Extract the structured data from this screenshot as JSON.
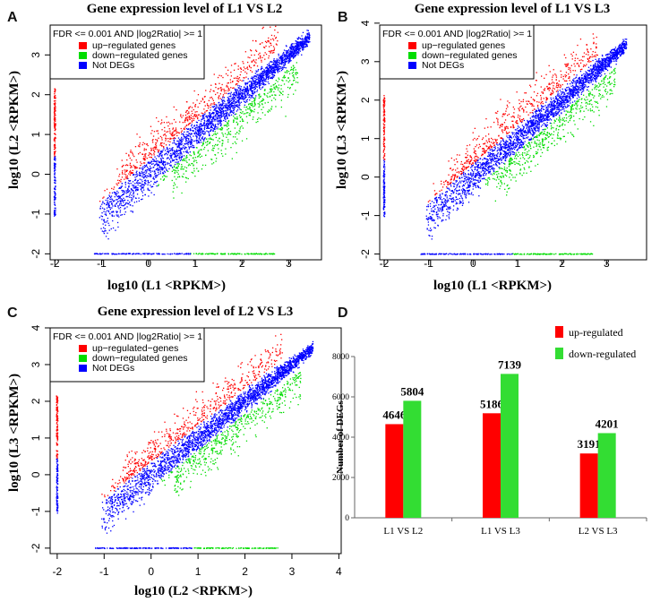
{
  "figure": {
    "panel_letters": [
      "A",
      "B",
      "C",
      "D"
    ]
  },
  "colors": {
    "up": "#ff0000",
    "down": "#00dd00",
    "not": "#0000ff",
    "bar_up": "#ff0000",
    "bar_down": "#33dd33"
  },
  "chart_data": [
    {
      "panel": "A",
      "type": "scatter",
      "title": "Gene expression level of L1 VS L2",
      "xlabel": "log10 (L1 <RPKM>)",
      "ylabel": "log10 (L2 <RPKM>)",
      "xlim": [
        -2.1,
        3.7
      ],
      "ylim": [
        -2.15,
        3.75
      ],
      "xticks": [
        "-2",
        "-1",
        "0",
        "1",
        "2",
        "3"
      ],
      "yticks": [
        "-2",
        "-1",
        "0",
        "1",
        "2",
        "3"
      ],
      "legend": {
        "header": "FDR <= 0.001  AND |log2Ratio| >= 1",
        "items": [
          "up−regulated genes",
          "down−regulated genes",
          "Not DEGs"
        ]
      },
      "series": [
        {
          "name": "up-regulated genes"
        },
        {
          "name": "down-regulated genes"
        },
        {
          "name": "Not DEGs"
        }
      ]
    },
    {
      "panel": "B",
      "type": "scatter",
      "title": "Gene expression level of L1 VS L3",
      "xlabel": "log10 (L1 <RPKM>)",
      "ylabel": "log10 (L3 <RPKM>)",
      "xlim": [
        -2.1,
        3.9
      ],
      "ylim": [
        -2.15,
        3.95
      ],
      "xticks": [
        "-2",
        "-1",
        "0",
        "1",
        "2",
        "3"
      ],
      "yticks": [
        "-2",
        "-1",
        "0",
        "1",
        "2",
        "3",
        "4"
      ],
      "legend": {
        "header": "FDR <= 0.001  AND |log2Ratio| >= 1",
        "items": [
          "up−regulated genes",
          "down−regulated genes",
          "Not DEGs"
        ]
      },
      "series": [
        {
          "name": "up-regulated genes"
        },
        {
          "name": "down-regulated genes"
        },
        {
          "name": "Not DEGs"
        }
      ]
    },
    {
      "panel": "C",
      "type": "scatter",
      "title": "Gene expression level of L2 VS L3",
      "xlabel": "log10 (L2 <RPKM>)",
      "ylabel": "log10 (L3 <RPKM>)",
      "xlim": [
        -2.15,
        4.05
      ],
      "ylim": [
        -2.15,
        4.0
      ],
      "xticks": [
        "-2",
        "-1",
        "0",
        "1",
        "2",
        "3",
        "4"
      ],
      "yticks": [
        "-2",
        "-1",
        "0",
        "1",
        "2",
        "3",
        "4"
      ],
      "legend": {
        "header": "FDR <= 0.001  AND |log2Ratio| >= 1",
        "items": [
          "up−regulated−genes",
          "down−regulated genes",
          "Not DEGs"
        ]
      },
      "series": [
        {
          "name": "up-regulated genes"
        },
        {
          "name": "down-regulated genes"
        },
        {
          "name": "Not DEGs"
        }
      ]
    },
    {
      "panel": "D",
      "type": "bar",
      "ylabel": "Number of DEGs",
      "categories": [
        "L1 VS L2",
        "L1 VS L3",
        "L2 VS L3"
      ],
      "series": [
        {
          "name": "up-regulated",
          "values": [
            4646,
            5186,
            3191
          ]
        },
        {
          "name": "down-regulated",
          "values": [
            5804,
            7139,
            4201
          ]
        }
      ],
      "ylim": [
        0,
        8000
      ],
      "yticks": [
        "0",
        "2000",
        "4000",
        "6000",
        "8000"
      ],
      "legend_labels": [
        "up-regulated",
        "down-regulated"
      ]
    }
  ]
}
